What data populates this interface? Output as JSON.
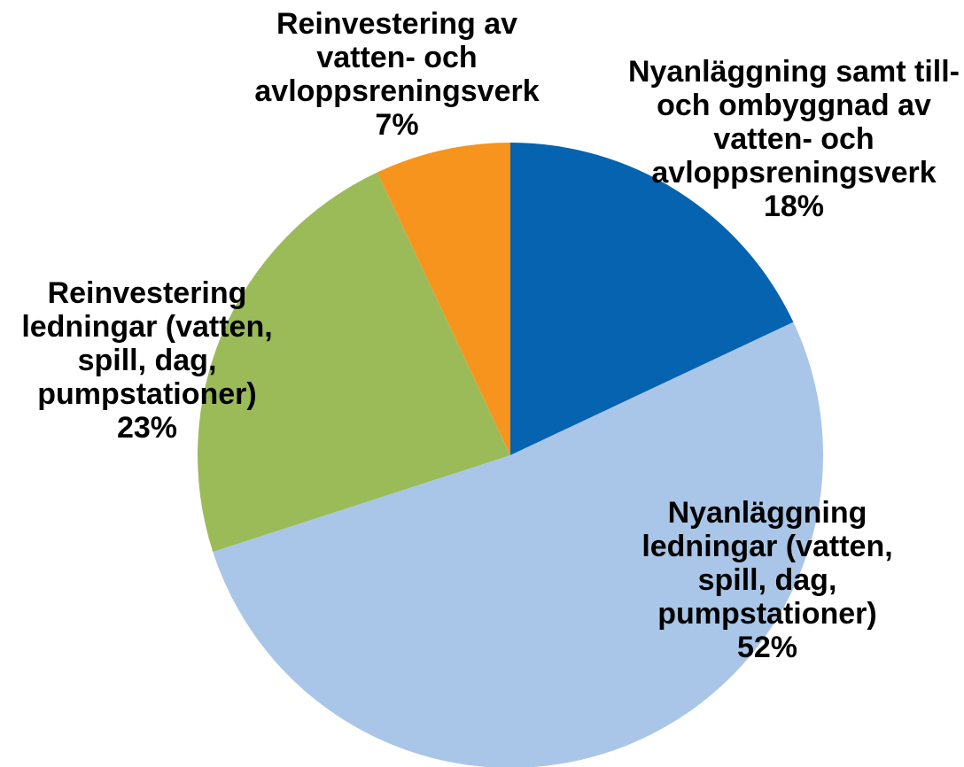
{
  "chart_data": {
    "type": "pie",
    "categories": [
      "Nyanläggning samt till- och ombyggnad av vatten- och avloppsreningsverk",
      "Nyanläggning ledningar (vatten, spill, dag, pumpstationer)",
      "Reinvestering ledningar (vatten, spill, dag, pumpstationer)",
      "Reinvestering av vatten- och avloppsreningsverk"
    ],
    "values": [
      18,
      52,
      23,
      7
    ],
    "value_labels": [
      "18%",
      "52%",
      "23%",
      "7%"
    ],
    "colors": [
      "#0563b0",
      "#a9c6e8",
      "#9bbb59",
      "#f7941d"
    ]
  }
}
